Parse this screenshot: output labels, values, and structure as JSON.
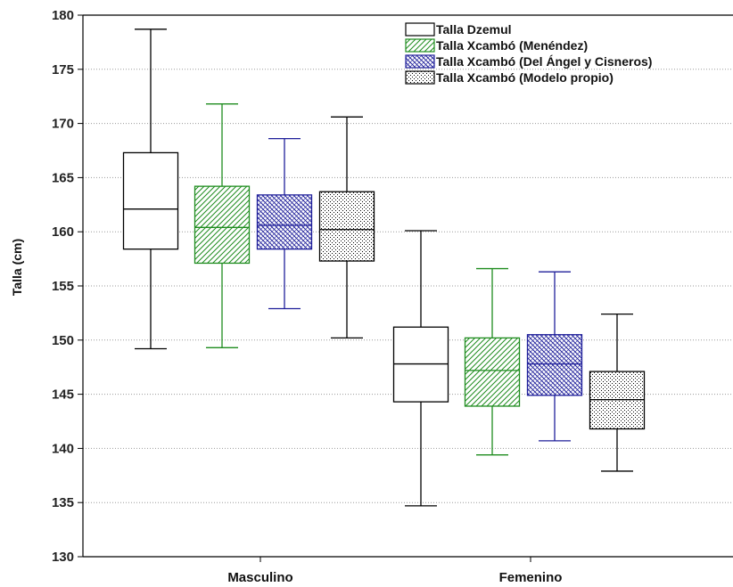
{
  "chart_data": {
    "type": "boxplot",
    "ylabel": "Talla (cm)",
    "xlabel": "",
    "ylim": [
      130,
      180
    ],
    "yticks": [
      130,
      135,
      140,
      145,
      150,
      155,
      160,
      165,
      170,
      175,
      180
    ],
    "grid": "horizontal-dotted",
    "legend_position": "top-right",
    "categories": [
      "Masculino",
      "Femenino"
    ],
    "series": [
      {
        "name": "Talla Dzemul",
        "color": "#000000",
        "pattern": "none",
        "boxes": [
          {
            "min": 149.2,
            "q1": 158.4,
            "median": 162.1,
            "q3": 167.3,
            "max": 178.7
          },
          {
            "min": 134.7,
            "q1": 144.3,
            "median": 147.8,
            "q3": 151.2,
            "max": 160.1
          }
        ]
      },
      {
        "name": "Talla Xcambó (Menéndez)",
        "color": "#1e8c1e",
        "pattern": "diagonal",
        "boxes": [
          {
            "min": 149.3,
            "q1": 157.1,
            "median": 160.4,
            "q3": 164.2,
            "max": 171.8
          },
          {
            "min": 139.4,
            "q1": 143.9,
            "median": 147.2,
            "q3": 150.2,
            "max": 156.6
          }
        ]
      },
      {
        "name": "Talla Xcambó (Del Ángel y Cisneros)",
        "color": "#1f1f9a",
        "pattern": "crosshatch",
        "boxes": [
          {
            "min": 152.9,
            "q1": 158.4,
            "median": 160.6,
            "q3": 163.4,
            "max": 168.6
          },
          {
            "min": 140.7,
            "q1": 144.9,
            "median": 147.8,
            "q3": 150.5,
            "max": 156.3
          }
        ]
      },
      {
        "name": "Talla Xcambó (Modelo propio)",
        "color": "#000000",
        "pattern": "dots",
        "boxes": [
          {
            "min": 150.2,
            "q1": 157.3,
            "median": 160.2,
            "q3": 163.7,
            "max": 170.6
          },
          {
            "min": 137.9,
            "q1": 141.8,
            "median": 144.5,
            "q3": 147.1,
            "max": 152.4
          }
        ]
      }
    ]
  }
}
